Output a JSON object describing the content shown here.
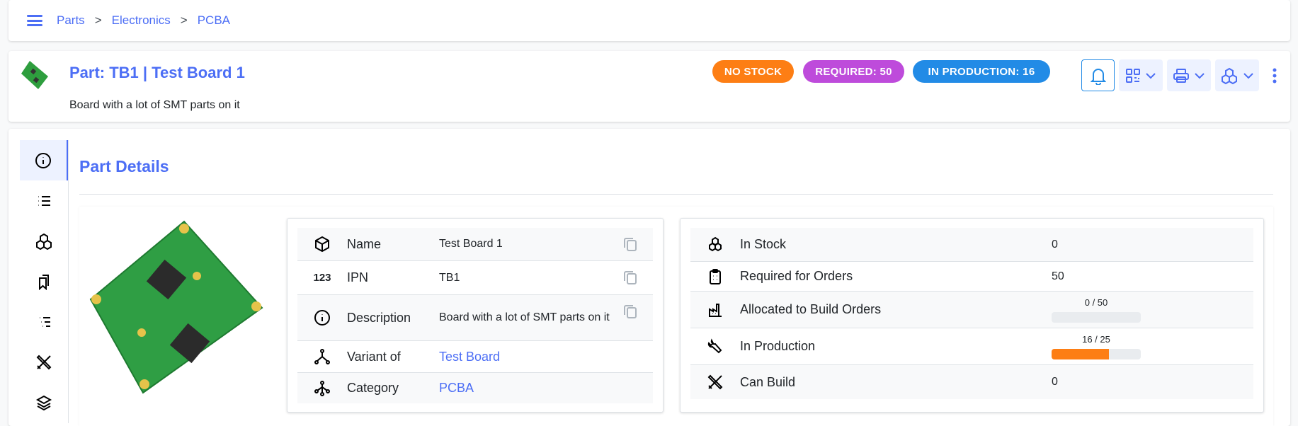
{
  "breadcrumb": [
    "Parts",
    "Electronics",
    "PCBA"
  ],
  "header": {
    "title": "Part: TB1 | Test Board 1",
    "description": "Board with a lot of SMT parts on it",
    "badges": [
      {
        "label": "NO STOCK",
        "color": "#fd7e14"
      },
      {
        "label": "REQUIRED: 50",
        "color": "#be4bdb"
      },
      {
        "label": "IN PRODUCTION: 16",
        "color": "#228be6"
      }
    ],
    "actions": [
      "bell-icon",
      "qrcode-icon",
      "printer-icon",
      "stock-icon",
      "more-icon"
    ]
  },
  "sidebar": [
    "info-icon",
    "list-icon",
    "stock-icon",
    "bookmarks-icon",
    "list-tree-icon",
    "tools-icon",
    "layers-icon"
  ],
  "section_title": "Part Details",
  "details": [
    {
      "icon": "box-icon",
      "label": "Name",
      "value": "Test Board 1",
      "copy": true
    },
    {
      "icon": "123-icon",
      "label": "IPN",
      "value": "TB1",
      "copy": true
    },
    {
      "icon": "info-icon",
      "label": "Description",
      "value": "Board with a lot of SMT parts on it",
      "copy": true
    },
    {
      "icon": "variant-icon",
      "label": "Variant of",
      "value": "Test Board",
      "link": true
    },
    {
      "icon": "category-icon",
      "label": "Category",
      "value": "PCBA",
      "link": true
    }
  ],
  "stats": [
    {
      "label": "In Stock",
      "value": "0"
    },
    {
      "label": "Required for Orders",
      "value": "50"
    },
    {
      "label": "Allocated to Build Orders",
      "progress": "0 / 50",
      "fraction": 0
    },
    {
      "label": "In Production",
      "progress": "16 / 25",
      "fraction": 0.64
    },
    {
      "label": "Can Build",
      "value": "0"
    }
  ]
}
